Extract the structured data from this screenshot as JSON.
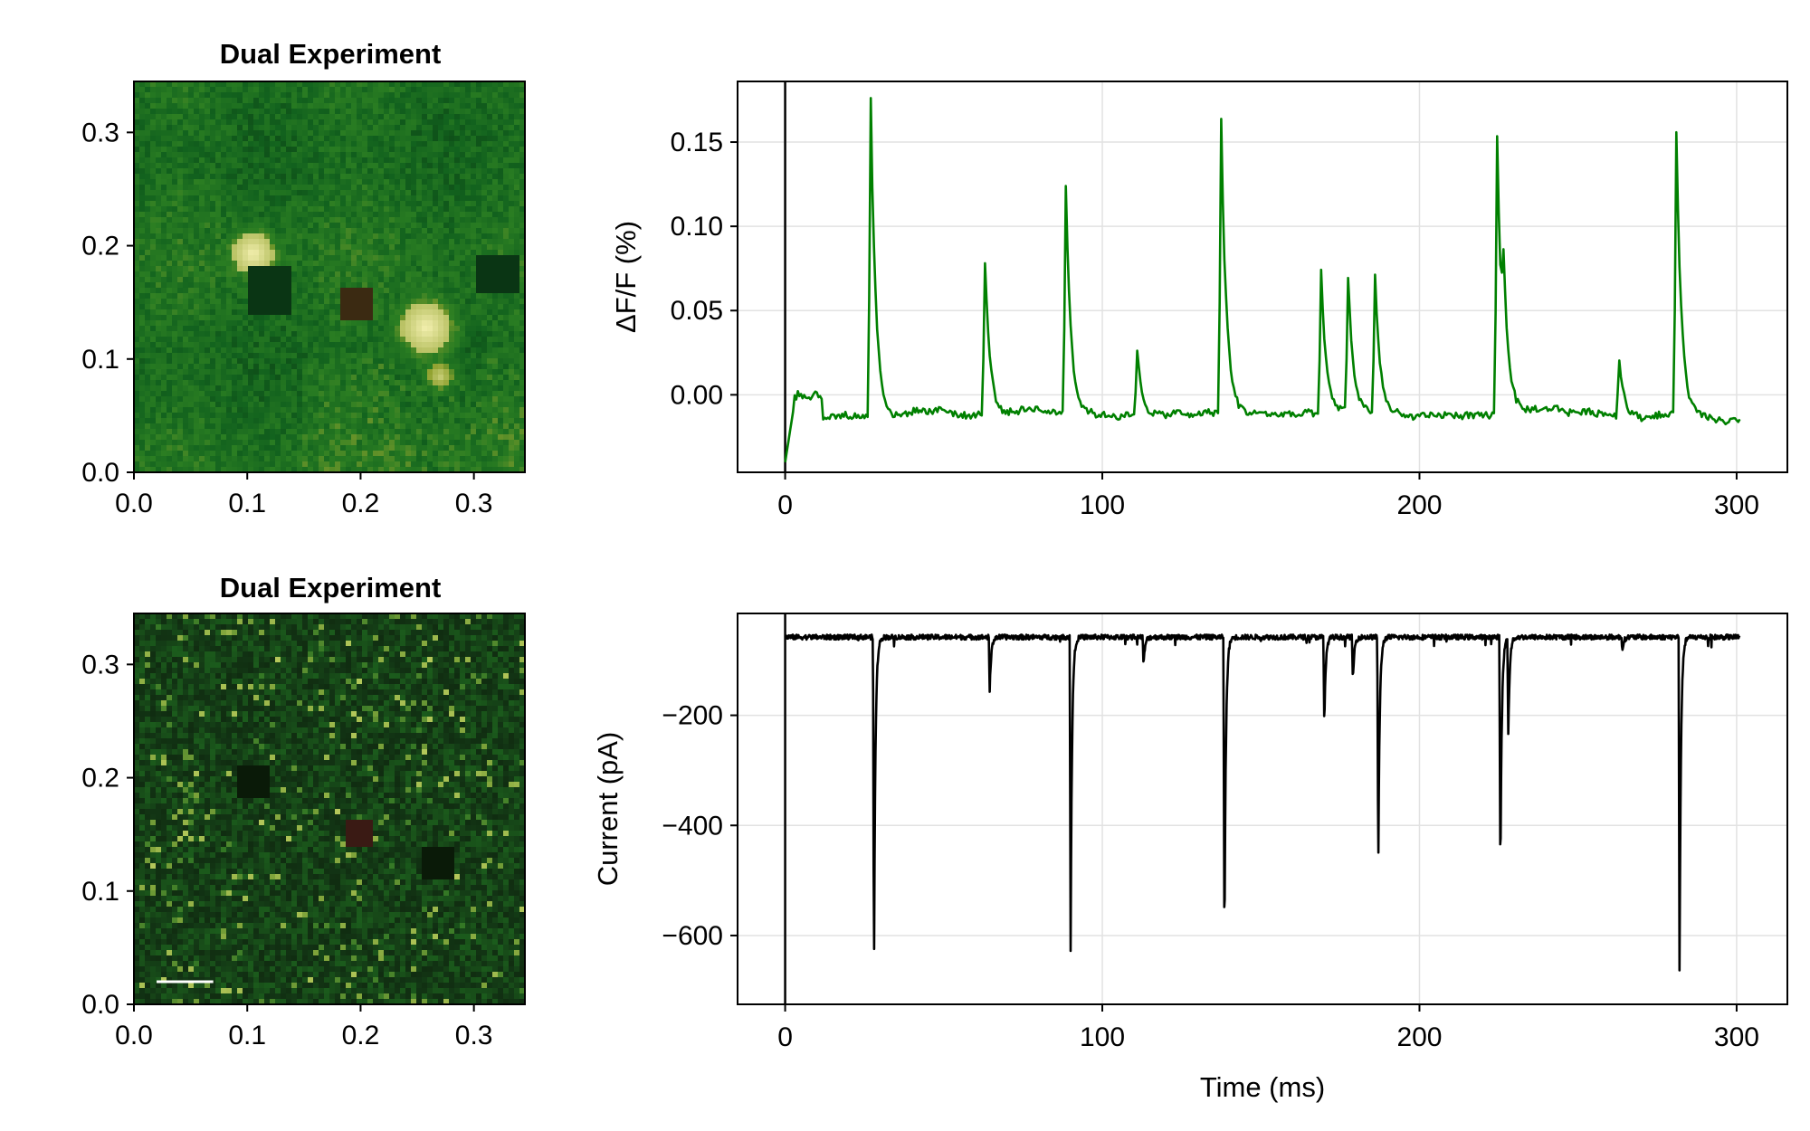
{
  "figure": {
    "background": "#ffffff"
  },
  "chart_data": [
    {
      "id": "image-top",
      "type": "heatmap",
      "title": "Dual Experiment",
      "xlim": [
        0.0,
        0.345
      ],
      "ylim": [
        0.0,
        0.345
      ],
      "xticks": [
        "0.0",
        "0.1",
        "0.2",
        "0.3"
      ],
      "yticks": [
        "0.0",
        "0.1",
        "0.2",
        "0.3"
      ],
      "colormap": [
        "#0b3a12",
        "#12621e",
        "#2a7d22",
        "#8fa12e",
        "#f4f0b0"
      ],
      "bright_regions": [
        {
          "cx": 0.105,
          "cy": 0.193,
          "r": 0.018,
          "level": 1.0
        },
        {
          "cx": 0.258,
          "cy": 0.128,
          "r": 0.022,
          "level": 1.0
        },
        {
          "cx": 0.27,
          "cy": 0.085,
          "r": 0.01,
          "level": 0.9
        }
      ],
      "dark_regions": [
        {
          "cx": 0.197,
          "cy": 0.148,
          "r": 0.014,
          "color": "#3b2a12"
        },
        {
          "cx": 0.12,
          "cy": 0.16,
          "r": 0.02,
          "color": "#0a3514"
        },
        {
          "cx": 0.32,
          "cy": 0.175,
          "r": 0.018,
          "color": "#0a3514"
        }
      ]
    },
    {
      "id": "dff-trace",
      "type": "line",
      "xlabel": "",
      "ylabel": "ΔF/F (%)",
      "xlim": [
        -15,
        316
      ],
      "ylim": [
        -0.046,
        0.186
      ],
      "xticks": [
        0,
        100,
        200,
        300
      ],
      "yticks": [
        0.0,
        0.05,
        0.1,
        0.15
      ],
      "ytick_labels": [
        "0.00",
        "0.05",
        "0.10",
        "0.15"
      ],
      "grid": true,
      "vline_x": 0,
      "line_color": "#008000",
      "baseline": -0.012,
      "x_end": 301,
      "spikes": [
        {
          "t": 27,
          "amp": 0.176
        },
        {
          "t": 63,
          "amp": 0.078
        },
        {
          "t": 88.5,
          "amp": 0.124
        },
        {
          "t": 111,
          "amp": 0.027
        },
        {
          "t": 137.5,
          "amp": 0.162
        },
        {
          "t": 169,
          "amp": 0.073
        },
        {
          "t": 177.5,
          "amp": 0.069
        },
        {
          "t": 186,
          "amp": 0.069
        },
        {
          "t": 224.5,
          "amp": 0.155
        },
        {
          "t": 226.5,
          "amp": 0.04
        },
        {
          "t": 281,
          "amp": 0.155
        },
        {
          "t": 263,
          "amp": 0.02
        }
      ]
    },
    {
      "id": "image-bottom",
      "type": "heatmap",
      "title": "Dual Experiment",
      "xlim": [
        0.0,
        0.345
      ],
      "ylim": [
        0.0,
        0.345
      ],
      "xticks": [
        "0.0",
        "0.1",
        "0.2",
        "0.3"
      ],
      "yticks": [
        "0.0",
        "0.1",
        "0.2",
        "0.3"
      ],
      "colormap": [
        "#0c1a08",
        "#123414",
        "#1f6b1f",
        "#7ea33a",
        "#d8e070"
      ],
      "dark_regions": [
        {
          "cx": 0.198,
          "cy": 0.15,
          "r": 0.013,
          "color": "#3a1a14"
        },
        {
          "cx": 0.105,
          "cy": 0.195,
          "r": 0.014,
          "color": "#0a1a08"
        },
        {
          "cx": 0.27,
          "cy": 0.125,
          "r": 0.015,
          "color": "#0a1a08"
        }
      ],
      "scale_bar": {
        "x0": 0.02,
        "x1": 0.07,
        "y": 0.02,
        "color": "#ffffff"
      }
    },
    {
      "id": "current-trace",
      "type": "line",
      "xlabel": "Time (ms)",
      "ylabel": "Current (pA)",
      "xlim": [
        -15,
        316
      ],
      "ylim": [
        -725,
        -15
      ],
      "xticks": [
        0,
        100,
        200,
        300
      ],
      "yticks": [
        -200,
        -400,
        -600
      ],
      "ytick_labels": [
        "−200",
        "−400",
        "−600"
      ],
      "grid": true,
      "vline_x": 0,
      "line_color": "#000000",
      "baseline": -58,
      "x_end": 301,
      "spikes": [
        {
          "t": 28,
          "amp": -690
        },
        {
          "t": 64.5,
          "amp": -160
        },
        {
          "t": 90,
          "amp": -630
        },
        {
          "t": 113,
          "amp": -112
        },
        {
          "t": 138.5,
          "amp": -650
        },
        {
          "t": 170,
          "amp": -215
        },
        {
          "t": 179,
          "amp": -140
        },
        {
          "t": 187,
          "amp": -495
        },
        {
          "t": 225.5,
          "amp": -510
        },
        {
          "t": 228,
          "amp": -235
        },
        {
          "t": 282,
          "amp": -660
        },
        {
          "t": 264,
          "amp": -82
        }
      ]
    }
  ]
}
